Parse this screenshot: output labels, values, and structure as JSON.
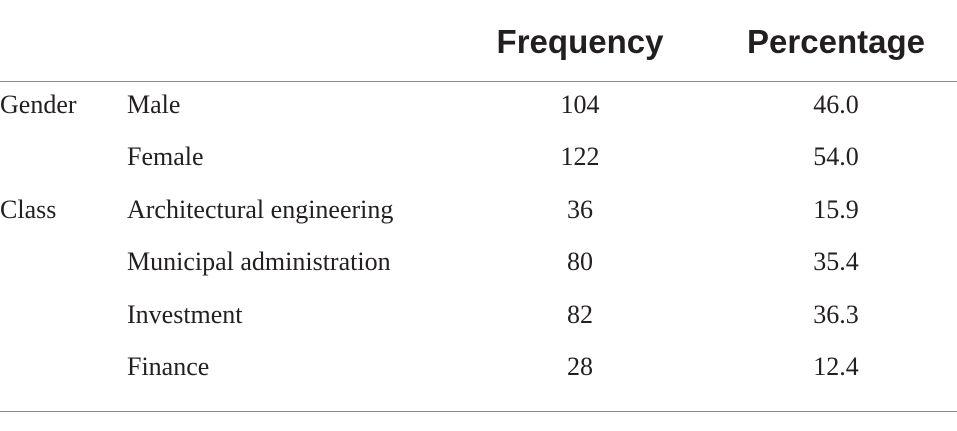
{
  "table": {
    "header": [
      "Frequency",
      "Percentage"
    ],
    "rows": [
      {
        "group": "Gender",
        "category": "Male",
        "frequency": "104",
        "percentage": "46.0"
      },
      {
        "category": "Female",
        "frequency": "122",
        "percentage": "54.0"
      },
      {
        "group": "Class",
        "category": "Architectural engineering",
        "frequency": "36",
        "percentage": "15.9"
      },
      {
        "category": "Municipal administration",
        "frequency": "80",
        "percentage": "35.4"
      },
      {
        "category": "Investment",
        "frequency": "82",
        "percentage": "36.3"
      },
      {
        "category": "Finance",
        "frequency": "28",
        "percentage": "12.4"
      }
    ]
  }
}
